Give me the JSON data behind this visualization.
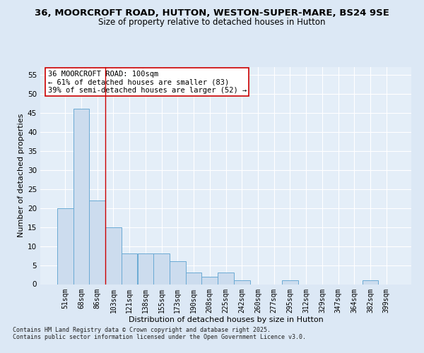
{
  "title_line1": "36, MOORCROFT ROAD, HUTTON, WESTON-SUPER-MARE, BS24 9SE",
  "title_line2": "Size of property relative to detached houses in Hutton",
  "xlabel": "Distribution of detached houses by size in Hutton",
  "ylabel": "Number of detached properties",
  "categories": [
    "51sqm",
    "68sqm",
    "86sqm",
    "103sqm",
    "121sqm",
    "138sqm",
    "155sqm",
    "173sqm",
    "190sqm",
    "208sqm",
    "225sqm",
    "242sqm",
    "260sqm",
    "277sqm",
    "295sqm",
    "312sqm",
    "329sqm",
    "347sqm",
    "364sqm",
    "382sqm",
    "399sqm"
  ],
  "values": [
    20,
    46,
    22,
    15,
    8,
    8,
    8,
    6,
    3,
    2,
    3,
    1,
    0,
    0,
    1,
    0,
    0,
    0,
    0,
    1,
    0
  ],
  "bar_color": "#ccdcee",
  "bar_edge_color": "#6aaad4",
  "vline_x": 2.5,
  "vline_color": "#cc0000",
  "annotation_text": "36 MOORCROFT ROAD: 100sqm\n← 61% of detached houses are smaller (83)\n39% of semi-detached houses are larger (52) →",
  "annotation_box_color": "#ffffff",
  "annotation_box_edge": "#cc0000",
  "ylim": [
    0,
    57
  ],
  "yticks": [
    0,
    5,
    10,
    15,
    20,
    25,
    30,
    35,
    40,
    45,
    50,
    55
  ],
  "background_color": "#dce8f5",
  "plot_bg_color": "#e4eef8",
  "grid_color": "#ffffff",
  "footer_text": "Contains HM Land Registry data © Crown copyright and database right 2025.\nContains public sector information licensed under the Open Government Licence v3.0.",
  "title_fontsize": 9.5,
  "subtitle_fontsize": 8.5,
  "axis_label_fontsize": 8,
  "tick_fontsize": 7,
  "annotation_fontsize": 7.5,
  "footer_fontsize": 6
}
